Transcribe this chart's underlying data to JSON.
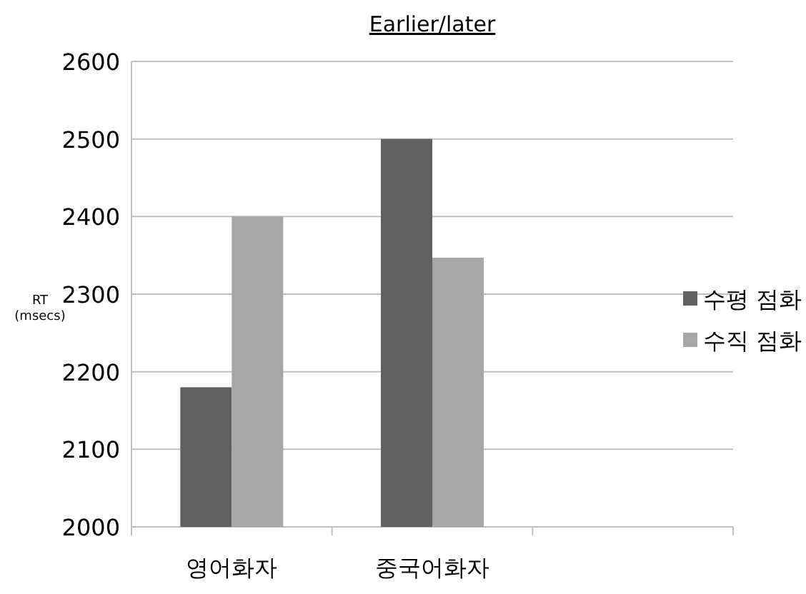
{
  "chart_data": {
    "type": "bar",
    "title": "Earlier/later",
    "ylabel": "RT\n(msecs)",
    "categories": [
      "영어화자",
      "중국어화자",
      null
    ],
    "series": [
      {
        "name": "수평 점화",
        "color": "#606060",
        "values": [
          2180,
          2500,
          null
        ]
      },
      {
        "name": "수직 점화",
        "color": "#a6a6a6",
        "values": [
          2400,
          2347,
          null
        ]
      }
    ],
    "ylim": [
      2000,
      2600
    ],
    "yticks": [
      2000,
      2100,
      2200,
      2300,
      2400,
      2500,
      2600
    ],
    "grid": "y",
    "legend": "right"
  }
}
